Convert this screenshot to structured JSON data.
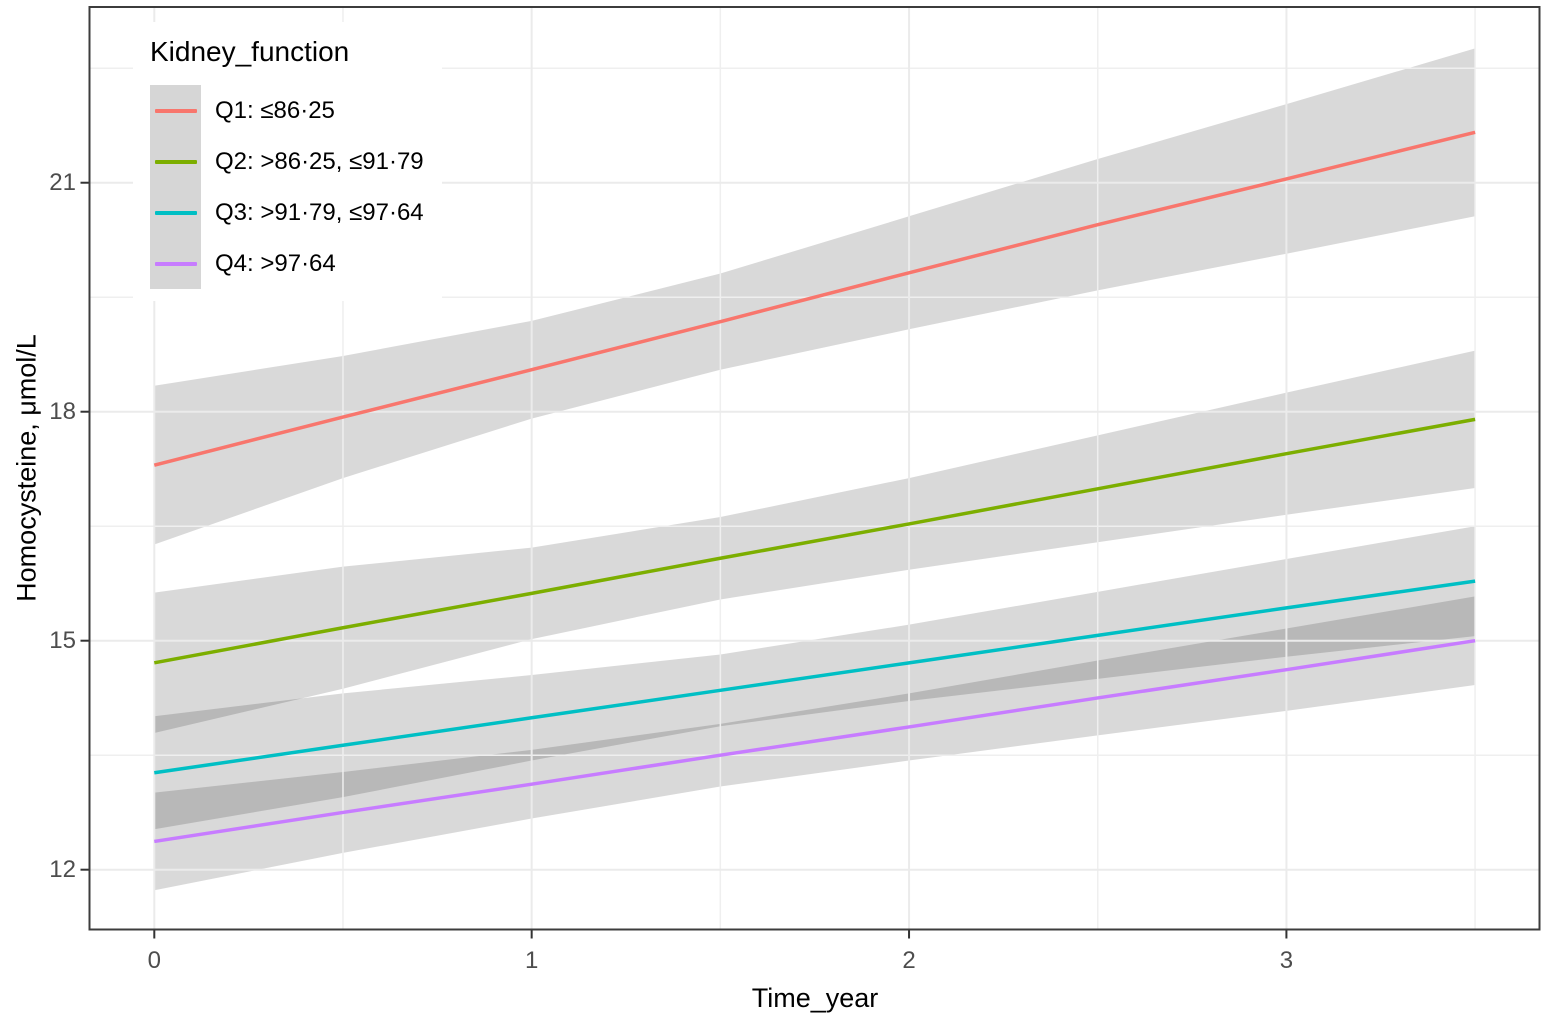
{
  "chart_data": {
    "type": "line",
    "title": "",
    "xlabel": "Time_year",
    "ylabel": "Homocysteine, μmol/L",
    "grid": "major-and-minor",
    "legend_position": "inside-top-left",
    "xlim": [
      0,
      3.5
    ],
    "ylim": [
      11.2,
      23.3
    ],
    "x_ticks": [
      0,
      1,
      2,
      3
    ],
    "x_tick_labels": [
      "0",
      "1",
      "2",
      "3"
    ],
    "x_minor_gridlines": [
      0.5,
      1.5,
      2.5,
      3.5
    ],
    "y_ticks": [
      12,
      15,
      18,
      21
    ],
    "y_tick_labels": [
      "12",
      "15",
      "18",
      "21"
    ],
    "y_minor_gridlines": [
      13.5,
      16.5,
      19.5,
      22.5
    ],
    "ribbon_fill": "rgba(0,0,0,0.15)",
    "legend": {
      "title": "Kidney_function",
      "items": [
        {
          "label": "Q1: ≤86·25"
        },
        {
          "label": "Q2: >86·25, ≤91·79"
        },
        {
          "label": "Q3: >91·79, ≤97·64"
        },
        {
          "label": "Q4: >97·64"
        }
      ]
    },
    "x": [
      0,
      0.5,
      1,
      1.5,
      2,
      2.5,
      3,
      3.5
    ],
    "series": [
      {
        "id": "q1",
        "name": "Q1: ≤86·25",
        "color": "#F8766D",
        "values": [
          17.3,
          17.93,
          18.55,
          19.18,
          19.82,
          20.45,
          21.05,
          21.66
        ],
        "ci_upper": [
          18.34,
          18.73,
          19.19,
          19.81,
          20.56,
          21.31,
          22.03,
          22.76
        ],
        "ci_lower": [
          16.26,
          17.13,
          17.91,
          18.55,
          19.08,
          19.59,
          20.07,
          20.56
        ]
      },
      {
        "id": "q2",
        "name": "Q2: >86·25, ≤91·79",
        "color": "#7CAE00",
        "values": [
          14.71,
          15.17,
          15.62,
          16.08,
          16.53,
          16.99,
          17.45,
          17.9
        ],
        "ci_upper": [
          15.63,
          15.97,
          16.22,
          16.62,
          17.13,
          17.69,
          18.25,
          18.8
        ],
        "ci_lower": [
          13.79,
          14.37,
          15.02,
          15.54,
          15.93,
          16.29,
          16.65,
          17.0
        ]
      },
      {
        "id": "q3",
        "name": "Q3: >91·79, ≤97·64",
        "color": "#00BFC4",
        "values": [
          13.27,
          13.63,
          13.99,
          14.35,
          14.71,
          15.07,
          15.43,
          15.78
        ],
        "ci_upper": [
          14.01,
          14.31,
          14.55,
          14.82,
          15.21,
          15.64,
          16.07,
          16.5
        ],
        "ci_lower": [
          12.53,
          12.95,
          13.43,
          13.88,
          14.21,
          14.5,
          14.79,
          15.06
        ]
      },
      {
        "id": "q4",
        "name": "Q4: >97·64",
        "color": "#C77CFF",
        "values": [
          12.37,
          12.75,
          13.12,
          13.5,
          13.87,
          14.25,
          14.62,
          15.0
        ],
        "ci_upper": [
          13.01,
          13.28,
          13.57,
          13.91,
          14.31,
          14.74,
          15.16,
          15.58
        ],
        "ci_lower": [
          11.73,
          12.22,
          12.67,
          13.09,
          13.43,
          13.76,
          14.08,
          14.42
        ]
      }
    ]
  }
}
